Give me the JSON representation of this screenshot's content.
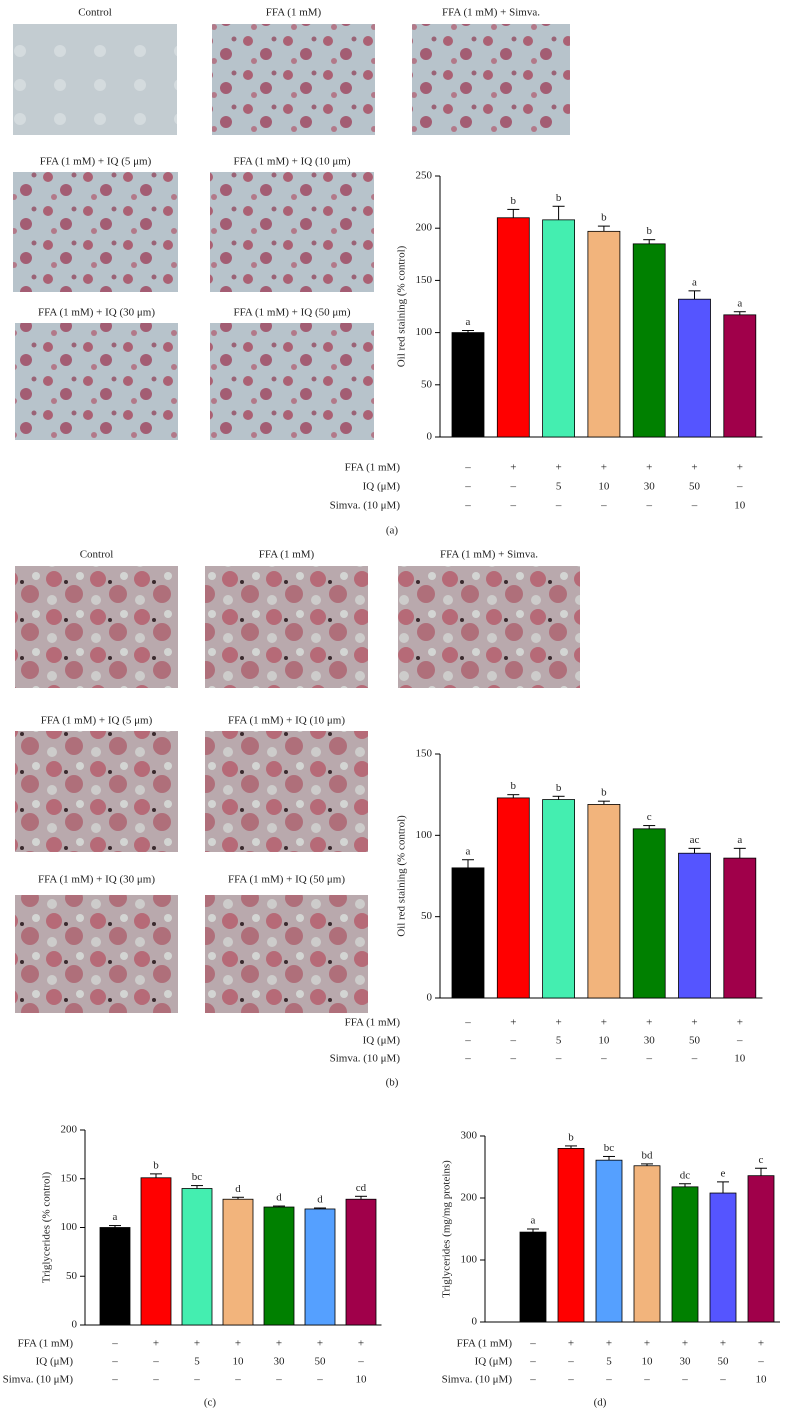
{
  "chart_data": [
    {
      "type": "bar",
      "panel_label": "(a)",
      "y_label": "Oil red staining (% control)",
      "micrographs": [
        "Control",
        "FFA (1 mM)",
        "FFA (1 mM) + Simva.",
        "FFA (1 mM) + IQ (5 μm)",
        "FFA (1 mM) + IQ (10 μm)",
        "FFA (1 mM) + IQ (30 μm)",
        "FFA (1 mM) + IQ (50 μm)"
      ],
      "values": [
        100,
        210,
        208,
        197,
        185,
        132,
        117
      ],
      "errors": [
        2,
        8,
        13,
        5,
        4,
        8,
        3
      ],
      "significance": [
        "a",
        "b",
        "b",
        "b",
        "b",
        "a",
        "a"
      ],
      "colors": [
        "#000000",
        "#ff0000",
        "#44eeb0",
        "#f2b47c",
        "#008000",
        "#5555ff",
        "#a0004a"
      ],
      "ylim": [
        0,
        250
      ],
      "yticks": [
        0,
        50,
        100,
        150,
        200,
        250
      ],
      "treatments": [
        {
          "label": "FFA (1 mM)",
          "cells": [
            "–",
            "+",
            "+",
            "+",
            "+",
            "+",
            "+"
          ]
        },
        {
          "label": "IQ (μM)",
          "cells": [
            "–",
            "–",
            "5",
            "10",
            "30",
            "50",
            "–"
          ]
        },
        {
          "label": "Simva. (10 μM)",
          "cells": [
            "–",
            "–",
            "–",
            "–",
            "–",
            "–",
            "10"
          ]
        }
      ]
    },
    {
      "type": "bar",
      "panel_label": "(b)",
      "y_label": "Oil red staining (% control)",
      "micrographs": [
        "Control",
        "FFA (1 mM)",
        "FFA (1 mM) + Simva.",
        "FFA (1 mM) + IQ (5 μm)",
        "FFA (1 mM) + IQ (10 μm)",
        "FFA (1 mM) + IQ (30 μm)",
        "FFA (1 mM) + IQ (50 μm)"
      ],
      "values": [
        80,
        123,
        122,
        119,
        104,
        89,
        86
      ],
      "errors": [
        5,
        2,
        2,
        2,
        2,
        3,
        6
      ],
      "significance": [
        "a",
        "b",
        "b",
        "b",
        "c",
        "ac",
        "a"
      ],
      "colors": [
        "#000000",
        "#ff0000",
        "#44eeb0",
        "#f2b47c",
        "#008000",
        "#5555ff",
        "#a0004a"
      ],
      "ylim": [
        0,
        150
      ],
      "yticks": [
        0,
        50,
        100,
        150
      ],
      "treatments": [
        {
          "label": "FFA (1 mM)",
          "cells": [
            "–",
            "+",
            "+",
            "+",
            "+",
            "+",
            "+"
          ]
        },
        {
          "label": "IQ (μM)",
          "cells": [
            "–",
            "–",
            "5",
            "10",
            "30",
            "50",
            "–"
          ]
        },
        {
          "label": "Simva. (10 μM)",
          "cells": [
            "–",
            "–",
            "–",
            "–",
            "–",
            "–",
            "10"
          ]
        }
      ]
    },
    {
      "type": "bar",
      "panel_label": "(c)",
      "y_label": "Triglycerides (% control)",
      "values": [
        100,
        151,
        140,
        129,
        121,
        119,
        129
      ],
      "errors": [
        2,
        4,
        3,
        2,
        1,
        1,
        3
      ],
      "significance": [
        "a",
        "b",
        "bc",
        "d",
        "d",
        "d",
        "cd"
      ],
      "colors": [
        "#000000",
        "#ff0000",
        "#44eeb0",
        "#f2b47c",
        "#008000",
        "#55a0ff",
        "#a0004a"
      ],
      "ylim": [
        0,
        200
      ],
      "yticks": [
        0,
        50,
        100,
        150,
        200
      ],
      "treatments": [
        {
          "label": "FFA (1 mM)",
          "cells": [
            "–",
            "+",
            "+",
            "+",
            "+",
            "+",
            "+"
          ]
        },
        {
          "label": "IQ (μM)",
          "cells": [
            "–",
            "–",
            "5",
            "10",
            "30",
            "50",
            "–"
          ]
        },
        {
          "label": "Simva. (10 μM)",
          "cells": [
            "–",
            "–",
            "–",
            "–",
            "–",
            "–",
            "10"
          ]
        }
      ]
    },
    {
      "type": "bar",
      "panel_label": "(d)",
      "y_label": "Triglycerides (mg/mg proteins)",
      "values": [
        145,
        280,
        261,
        252,
        218,
        208,
        236
      ],
      "errors": [
        5,
        4,
        6,
        3,
        5,
        18,
        12
      ],
      "significance": [
        "a",
        "b",
        "bc",
        "bd",
        "dc",
        "e",
        "c"
      ],
      "colors": [
        "#000000",
        "#ff0000",
        "#55a0ff",
        "#f2b47c",
        "#008000",
        "#5555ff",
        "#a0004a"
      ],
      "ylim": [
        0,
        300
      ],
      "yticks": [
        0,
        100,
        200,
        300
      ],
      "treatments": [
        {
          "label": "FFA (1 mM)",
          "cells": [
            "–",
            "+",
            "+",
            "+",
            "+",
            "+",
            "+"
          ]
        },
        {
          "label": "IQ (μM)",
          "cells": [
            "–",
            "–",
            "5",
            "10",
            "30",
            "50",
            "–"
          ]
        },
        {
          "label": "Simva. (10 μM)",
          "cells": [
            "–",
            "–",
            "–",
            "–",
            "–",
            "–",
            "10"
          ]
        }
      ]
    }
  ]
}
